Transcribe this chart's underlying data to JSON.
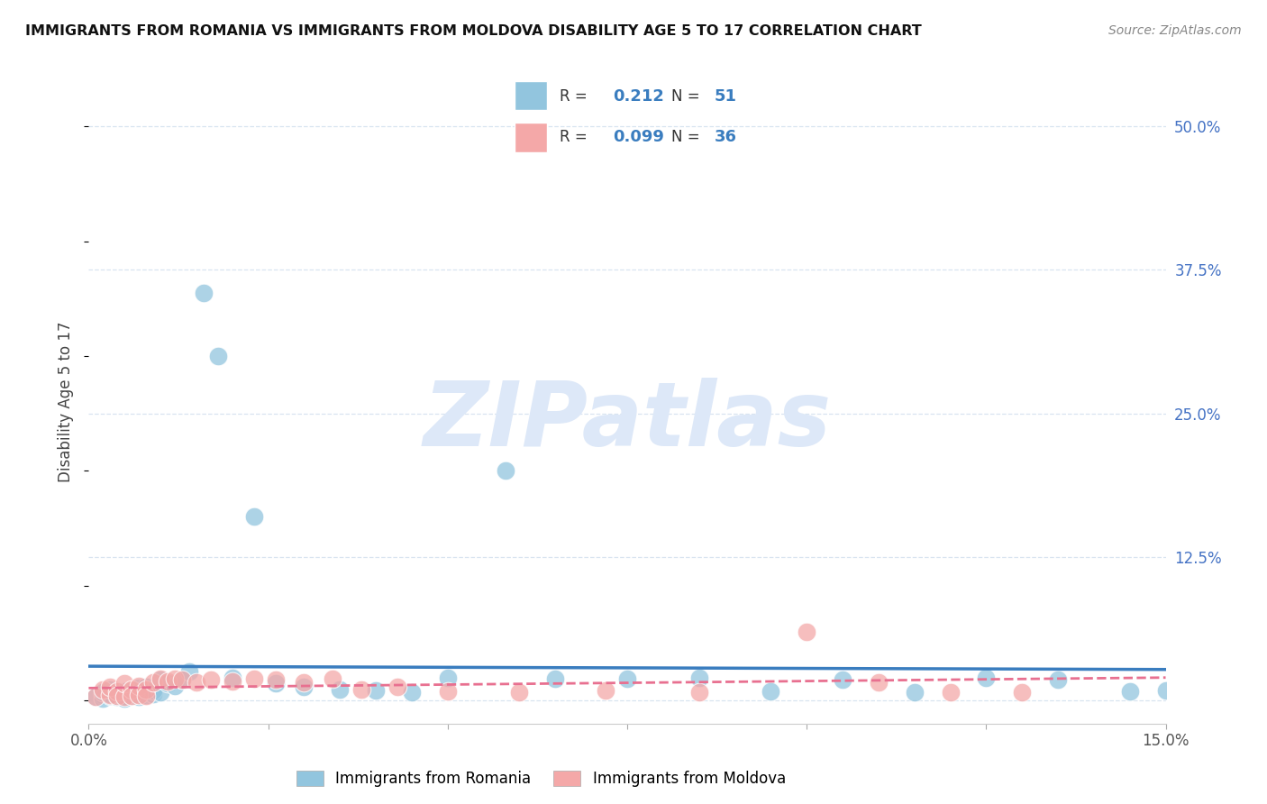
{
  "title": "IMMIGRANTS FROM ROMANIA VS IMMIGRANTS FROM MOLDOVA DISABILITY AGE 5 TO 17 CORRELATION CHART",
  "source": "Source: ZipAtlas.com",
  "ylabel": "Disability Age 5 to 17",
  "xlim": [
    0.0,
    0.15
  ],
  "ylim": [
    -0.02,
    0.54
  ],
  "ytick_vals": [
    0.0,
    0.125,
    0.25,
    0.375,
    0.5
  ],
  "ytick_labels": [
    "",
    "12.5%",
    "25.0%",
    "37.5%",
    "50.0%"
  ],
  "xtick_positions": [
    0.0,
    0.025,
    0.05,
    0.075,
    0.1,
    0.125,
    0.15
  ],
  "xtick_labels": [
    "0.0%",
    "",
    "",
    "",
    "",
    "",
    "15.0%"
  ],
  "romania_R": 0.212,
  "romania_N": 51,
  "moldova_R": 0.099,
  "moldova_N": 36,
  "romania_color": "#92c5de",
  "moldova_color": "#f4a8a8",
  "romania_line_color": "#3a7dbf",
  "moldova_line_color": "#e87090",
  "background_color": "#ffffff",
  "grid_color": "#d8e4f0",
  "watermark_color": "#dde8f8",
  "title_color": "#111111",
  "source_color": "#888888",
  "tick_color": "#4472c4",
  "romania_x": [
    0.001,
    0.002,
    0.002,
    0.002,
    0.003,
    0.003,
    0.003,
    0.004,
    0.004,
    0.005,
    0.005,
    0.005,
    0.005,
    0.006,
    0.006,
    0.006,
    0.007,
    0.007,
    0.007,
    0.008,
    0.008,
    0.008,
    0.009,
    0.009,
    0.01,
    0.01,
    0.011,
    0.012,
    0.013,
    0.014,
    0.016,
    0.018,
    0.02,
    0.023,
    0.026,
    0.03,
    0.035,
    0.04,
    0.045,
    0.05,
    0.058,
    0.065,
    0.075,
    0.085,
    0.095,
    0.105,
    0.115,
    0.125,
    0.135,
    0.145,
    0.15
  ],
  "romania_y": [
    0.003,
    0.005,
    0.002,
    0.007,
    0.004,
    0.006,
    0.01,
    0.003,
    0.008,
    0.005,
    0.004,
    0.008,
    0.002,
    0.006,
    0.009,
    0.004,
    0.007,
    0.011,
    0.003,
    0.008,
    0.005,
    0.012,
    0.006,
    0.009,
    0.018,
    0.007,
    0.015,
    0.013,
    0.018,
    0.025,
    0.355,
    0.3,
    0.02,
    0.16,
    0.015,
    0.012,
    0.01,
    0.009,
    0.007,
    0.02,
    0.2,
    0.019,
    0.019,
    0.02,
    0.008,
    0.018,
    0.007,
    0.02,
    0.018,
    0.008,
    0.009
  ],
  "moldova_x": [
    0.001,
    0.002,
    0.003,
    0.003,
    0.004,
    0.004,
    0.005,
    0.005,
    0.006,
    0.006,
    0.007,
    0.007,
    0.008,
    0.008,
    0.009,
    0.01,
    0.011,
    0.012,
    0.013,
    0.015,
    0.017,
    0.02,
    0.023,
    0.026,
    0.03,
    0.034,
    0.038,
    0.043,
    0.05,
    0.06,
    0.072,
    0.085,
    0.1,
    0.11,
    0.12,
    0.13
  ],
  "moldova_y": [
    0.003,
    0.01,
    0.005,
    0.012,
    0.008,
    0.004,
    0.003,
    0.015,
    0.01,
    0.004,
    0.013,
    0.005,
    0.01,
    0.004,
    0.016,
    0.019,
    0.017,
    0.019,
    0.018,
    0.016,
    0.018,
    0.017,
    0.019,
    0.018,
    0.016,
    0.019,
    0.01,
    0.012,
    0.008,
    0.007,
    0.009,
    0.007,
    0.06,
    0.016,
    0.007,
    0.007
  ]
}
